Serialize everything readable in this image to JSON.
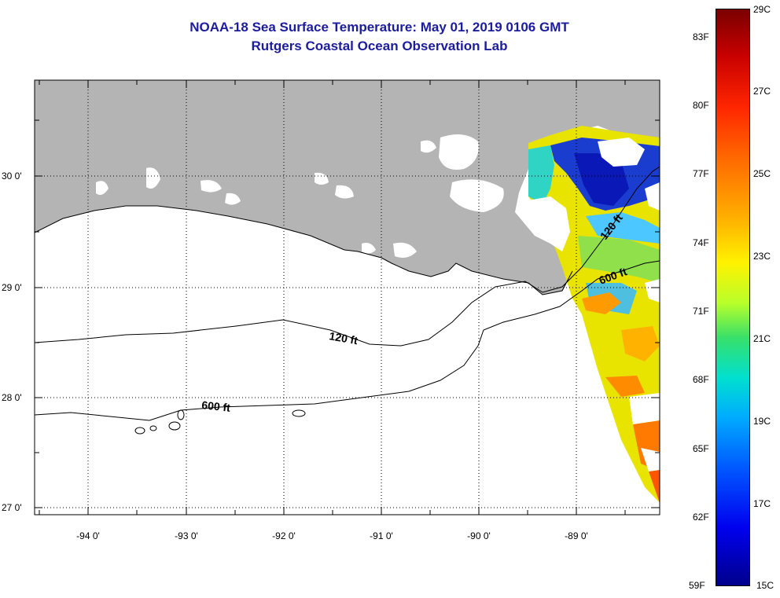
{
  "title": {
    "line1": "NOAA-18 Sea Surface Temperature:  May 01, 2019 0106 GMT",
    "line2": "Rutgers Coastal Ocean Observation Lab"
  },
  "axes": {
    "lon_labels": [
      "-94 0'",
      "-93 0'",
      "-92 0'",
      "-91 0'",
      "-90 0'",
      "-89 0'"
    ],
    "lat_labels": [
      "30 0'",
      "29 0'",
      "28 0'",
      "27 0'"
    ]
  },
  "contours": {
    "shelf_label": "120 ft",
    "slope_label": "600 ft",
    "shelf_label_east": "120 ft",
    "slope_label_east": "600 ft"
  },
  "colorbar": {
    "fahrenheit_labels": [
      "83F",
      "80F",
      "77F",
      "74F",
      "71F",
      "68F",
      "65F",
      "62F",
      "59F"
    ],
    "celsius_labels": [
      "29C",
      "27C",
      "25C",
      "23C",
      "21C",
      "19C",
      "17C",
      "15C"
    ],
    "range_celsius": [
      15,
      29
    ],
    "range_fahrenheit": [
      59,
      84.2
    ]
  },
  "colors": {
    "land": "#b4b4b4",
    "title": "#1c1c9e",
    "cloud_mask": "#ffffff"
  }
}
